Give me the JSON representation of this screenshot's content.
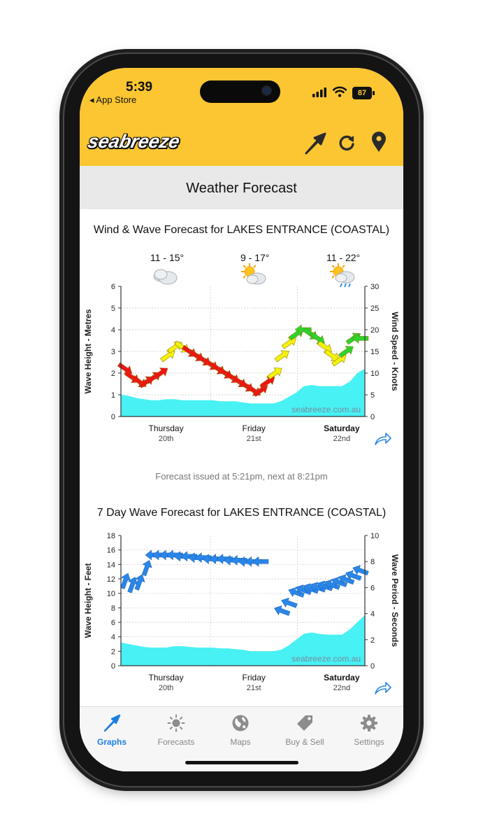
{
  "status": {
    "time": "5:39",
    "back_label": "◂ App Store",
    "battery": "87"
  },
  "header": {
    "logo": "seabreeze",
    "icons": [
      "direction-arrow-icon",
      "refresh-icon",
      "location-pin-icon"
    ],
    "bg_color": "#fbc631"
  },
  "page_title": "Weather Forecast",
  "wind_chart": {
    "title": "Wind & Wave Forecast for LAKES ENTRANCE (COASTAL)",
    "days": [
      {
        "temp": "11 - 15°",
        "icon": "cloudy-icon",
        "day": "Thursday",
        "date": "20th"
      },
      {
        "temp": "9 - 17°",
        "icon": "partly-sunny-icon",
        "day": "Friday",
        "date": "21st"
      },
      {
        "temp": "11 - 22°",
        "icon": "sun-shower-icon",
        "day": "Saturday",
        "date": "22nd"
      }
    ],
    "watermark": "seabreeze.com.au"
  },
  "forecast_note": "Forecast issued at 5:21pm, next at 8:21pm",
  "wave_chart": {
    "title": "7 Day Wave Forecast for LAKES ENTRANCE (COASTAL)",
    "days": [
      {
        "day": "Thursday",
        "date": "20th"
      },
      {
        "day": "Friday",
        "date": "21st"
      },
      {
        "day": "Saturday",
        "date": "22nd"
      }
    ],
    "watermark": "seabreeze.com.au"
  },
  "chart_data": [
    {
      "type": "area",
      "title": "Wind & Wave Forecast for LAKES ENTRANCE (COASTAL)",
      "ylabel": "Wave Height - Metres",
      "y2label": "Wind Speed - Knots",
      "ylim": [
        0,
        6
      ],
      "y2lim": [
        0,
        30
      ],
      "yticks": [
        "0",
        "1",
        "2",
        "3",
        "4",
        "5",
        "6"
      ],
      "y2ticks": [
        "0",
        "5",
        "10",
        "15",
        "20",
        "25",
        "30"
      ],
      "x_days": [
        "Thursday 20th",
        "Friday 21st",
        "Saturday 22nd"
      ],
      "grid": true,
      "wave_color": "#33f0f3",
      "wind_colors": {
        "strong": "#ef1515",
        "moderate": "#f2f20a",
        "light": "#2dd42d"
      },
      "wave_height_m": [
        1.0,
        0.95,
        0.85,
        0.8,
        0.75,
        0.75,
        0.8,
        0.8,
        0.75,
        0.75,
        0.75,
        0.75,
        0.75,
        0.7,
        0.7,
        0.7,
        0.65,
        0.6,
        0.6,
        0.6,
        0.6,
        0.7,
        0.9,
        1.1,
        1.4,
        1.45,
        1.4,
        1.4,
        1.4,
        1.4,
        1.6,
        2.0,
        2.2
      ],
      "wind_knots": [
        11,
        9,
        8,
        8,
        9,
        10,
        14,
        16,
        16,
        15,
        14,
        13,
        12,
        11,
        10,
        9,
        8,
        7,
        6,
        6,
        8,
        10,
        14,
        17,
        19,
        20,
        19,
        18,
        16,
        14,
        13,
        15,
        18,
        18
      ],
      "wind_bands": [
        "strong",
        "strong",
        "strong",
        "strong",
        "strong",
        "strong",
        "moderate",
        "moderate",
        "moderate",
        "strong",
        "strong",
        "strong",
        "strong",
        "strong",
        "strong",
        "strong",
        "strong",
        "strong",
        "strong",
        "strong",
        "strong",
        "moderate",
        "moderate",
        "moderate",
        "light",
        "light",
        "light",
        "light",
        "moderate",
        "moderate",
        "moderate",
        "light",
        "light",
        "light"
      ]
    },
    {
      "type": "area",
      "title": "7 Day Wave Forecast for LAKES ENTRANCE (COASTAL)",
      "ylabel": "Wave Height - Feet",
      "y2label": "Wave Period - Seconds",
      "ylim": [
        0,
        18
      ],
      "y2lim": [
        0,
        10
      ],
      "yticks": [
        "0",
        "2",
        "4",
        "6",
        "8",
        "10",
        "12",
        "14",
        "16",
        "18"
      ],
      "y2ticks": [
        "0",
        "2",
        "4",
        "6",
        "8",
        "10"
      ],
      "x_days": [
        "Thursday 20th",
        "Friday 21st",
        "Saturday 22nd"
      ],
      "grid": true,
      "wave_color": "#33f0f3",
      "period_color": "#2a86e8",
      "wave_height_ft": [
        3.2,
        3.0,
        2.8,
        2.6,
        2.5,
        2.5,
        2.5,
        2.7,
        2.7,
        2.6,
        2.5,
        2.5,
        2.5,
        2.4,
        2.4,
        2.3,
        2.2,
        2.0,
        2.0,
        2.0,
        2.0,
        2.2,
        2.8,
        3.6,
        4.4,
        4.6,
        4.4,
        4.3,
        4.3,
        4.3,
        5.0,
        6.0,
        7.0
      ],
      "wave_period_s": [
        6.5,
        6.2,
        6.4,
        7.5,
        8.5,
        8.5,
        8.5,
        8.5,
        8.4,
        8.4,
        8.3,
        8.3,
        8.2,
        8.2,
        8.2,
        8.1,
        8.1,
        8.0,
        8.0,
        8.0,
        null,
        null,
        4.2,
        4.8,
        5.6,
        5.8,
        5.9,
        6.0,
        6.1,
        6.2,
        6.4,
        6.6,
        6.9,
        7.3
      ]
    }
  ],
  "tabs": [
    {
      "label": "Graphs",
      "icon": "graphs-icon",
      "active": true
    },
    {
      "label": "Forecasts",
      "icon": "sun-icon",
      "active": false
    },
    {
      "label": "Maps",
      "icon": "globe-icon",
      "active": false
    },
    {
      "label": "Buy & Sell",
      "icon": "tag-icon",
      "active": false
    },
    {
      "label": "Settings",
      "icon": "gear-icon",
      "active": false
    }
  ]
}
